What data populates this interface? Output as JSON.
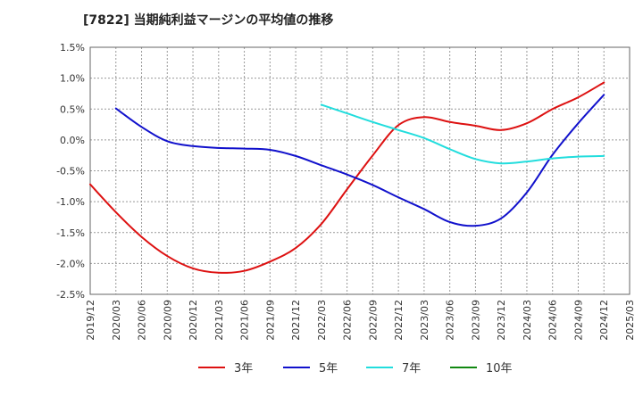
{
  "chart_data": {
    "type": "line",
    "title": "[7822]  当期純利益マージンの平均値の推移",
    "xlabel": "",
    "ylabel": "",
    "x_categories": [
      "2019/12",
      "2020/03",
      "2020/06",
      "2020/09",
      "2020/12",
      "2021/03",
      "2021/06",
      "2021/09",
      "2021/12",
      "2022/03",
      "2022/06",
      "2022/09",
      "2022/12",
      "2023/03",
      "2023/06",
      "2023/09",
      "2023/12",
      "2024/03",
      "2024/06",
      "2024/09",
      "2024/12",
      "2025/03"
    ],
    "y_tick_labels": [
      "1.5%",
      "1.0%",
      "0.5%",
      "0.0%",
      "-0.5%",
      "-1.0%",
      "-1.5%",
      "-2.0%",
      "-2.5%"
    ],
    "ylim": [
      -2.5,
      1.5
    ],
    "grid": true,
    "legend_position": "bottom",
    "series": [
      {
        "name": "3年",
        "color": "#dd1111",
        "values": [
          -0.72,
          -1.17,
          -1.57,
          -1.88,
          -2.08,
          -2.15,
          -2.12,
          -1.97,
          -1.75,
          -1.36,
          -0.8,
          -0.25,
          0.24,
          0.37,
          0.29,
          0.23,
          0.16,
          0.27,
          0.5,
          0.69,
          0.93,
          null
        ]
      },
      {
        "name": "5年",
        "color": "#1111cc",
        "values": [
          null,
          0.51,
          0.21,
          -0.02,
          -0.1,
          -0.13,
          -0.14,
          -0.16,
          -0.26,
          -0.41,
          -0.56,
          -0.73,
          -0.93,
          -1.12,
          -1.33,
          -1.39,
          -1.27,
          -0.85,
          -0.24,
          0.27,
          0.73,
          null
        ]
      },
      {
        "name": "7年",
        "color": "#22dddd",
        "values": [
          null,
          null,
          null,
          null,
          null,
          null,
          null,
          null,
          null,
          0.57,
          0.43,
          0.29,
          0.16,
          0.03,
          -0.15,
          -0.31,
          -0.38,
          -0.35,
          -0.3,
          -0.27,
          -0.26,
          null
        ]
      },
      {
        "name": "10年",
        "color": "#118811",
        "values": [
          null,
          null,
          null,
          null,
          null,
          null,
          null,
          null,
          null,
          null,
          null,
          null,
          null,
          null,
          null,
          null,
          null,
          null,
          null,
          null,
          null,
          null
        ]
      }
    ]
  }
}
